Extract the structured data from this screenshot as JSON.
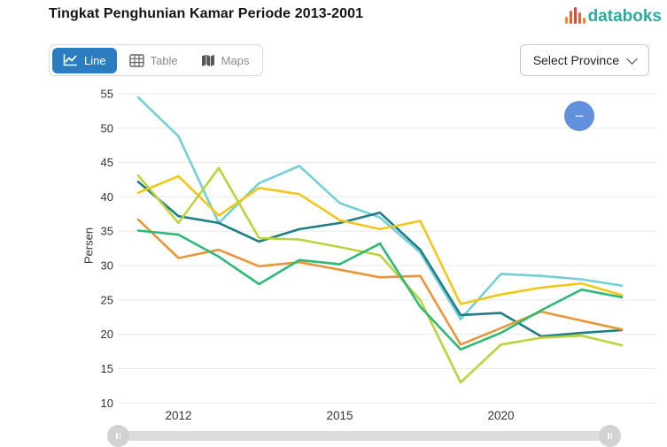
{
  "header": {
    "title": "Tingkat Penghunian Kamar Periode 2013-2001",
    "logo_text": "databoks"
  },
  "toolbar": {
    "line_label": "Line",
    "table_label": "Table",
    "maps_label": "Maps",
    "province_selector": "Select Province"
  },
  "chart": {
    "y_axis_title": "Persen",
    "zoom_out_glyph": "−"
  },
  "colors": {
    "active_tab_bg": "#2b7dc0",
    "logo_teal": "#2bab9f",
    "logo_bar_orange": "#ef8b2f",
    "logo_bar_red": "#e64540",
    "zoom_button_blue": "#6290dc",
    "gridline": "#e8e8e8",
    "axis_text": "#333333"
  },
  "chart_data": {
    "type": "line",
    "title": "Tingkat Penghunian Kamar Periode 2013-2001",
    "xlabel": "",
    "ylabel": "Persen",
    "ylim": [
      10,
      55
    ],
    "y_ticks": [
      10,
      15,
      20,
      25,
      30,
      35,
      40,
      45,
      50,
      55
    ],
    "grid": "horizontal",
    "legend_position": "none",
    "x_point_count": 13,
    "x_tick_labels": [
      {
        "index": 1,
        "label": "2012"
      },
      {
        "index": 5,
        "label": "2015"
      },
      {
        "index": 9,
        "label": "2020"
      }
    ],
    "series": [
      {
        "name": "series-cyan",
        "color": "#74cfd6",
        "values": [
          54.5,
          48.8,
          36.2,
          42.0,
          44.5,
          39.1,
          37.0,
          31.9,
          22.2,
          28.8,
          28.5,
          28.0,
          27.1
        ]
      },
      {
        "name": "series-teal",
        "color": "#1d7f85",
        "values": [
          42.2,
          37.2,
          36.2,
          33.5,
          35.3,
          36.2,
          37.7,
          32.3,
          22.8,
          23.1,
          19.7,
          20.2,
          20.6
        ]
      },
      {
        "name": "series-yellow",
        "color": "#f2c71b",
        "values": [
          40.6,
          43.0,
          37.3,
          41.3,
          40.4,
          36.6,
          35.3,
          36.5,
          24.4,
          25.8,
          26.8,
          27.4,
          25.7
        ]
      },
      {
        "name": "series-lime",
        "color": "#bdd23f",
        "values": [
          43.1,
          36.2,
          44.2,
          34.0,
          33.8,
          32.7,
          31.5,
          25.0,
          13.0,
          18.5,
          19.5,
          19.8,
          18.4
        ]
      },
      {
        "name": "series-orange",
        "color": "#e9963a",
        "values": [
          36.7,
          31.1,
          32.3,
          29.9,
          30.5,
          29.4,
          28.3,
          28.5,
          18.5,
          20.9,
          23.3,
          22.0,
          20.7
        ]
      },
      {
        "name": "series-green",
        "color": "#30b876",
        "values": [
          35.1,
          34.5,
          31.3,
          27.3,
          30.8,
          30.2,
          33.2,
          24.0,
          17.8,
          20.2,
          23.5,
          26.5,
          25.4
        ]
      }
    ]
  }
}
